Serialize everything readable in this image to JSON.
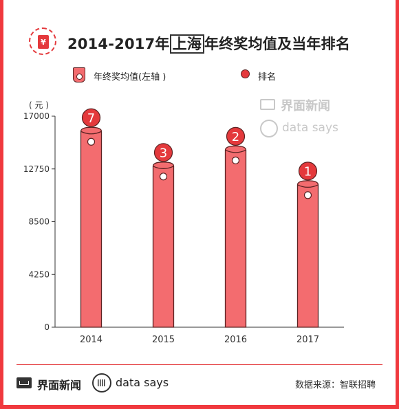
{
  "header": {
    "title_prefix": "2014-2017年",
    "title_boxed": "上海",
    "title_suffix": "年终奖均值及当年排名",
    "icon_symbol": "¥"
  },
  "legend": {
    "bar_label": "年终奖均值(左轴 )",
    "rank_label": "排名"
  },
  "unit_label": "( 元 )",
  "watermark": {
    "brand": "界面新闻",
    "says": "data says"
  },
  "footer": {
    "brand": "界面新闻",
    "says": "data says",
    "source": "数据来源：智联招聘"
  },
  "colors": {
    "bar": "#f36c6f",
    "bar_outline": "#5a2222",
    "rank_badge": "#e4393c",
    "accent": "#f0393e"
  },
  "chart_data": {
    "type": "bar",
    "categories": [
      "2014",
      "2015",
      "2016",
      "2017"
    ],
    "values": [
      16100,
      13300,
      14600,
      11800
    ],
    "ranks": [
      "7",
      "3",
      "2",
      "1"
    ],
    "yticks": [
      "0",
      "4250",
      "8500",
      "12750",
      "17000"
    ],
    "ylim": [
      0,
      17000
    ],
    "grid": false,
    "legend_position": "top"
  }
}
